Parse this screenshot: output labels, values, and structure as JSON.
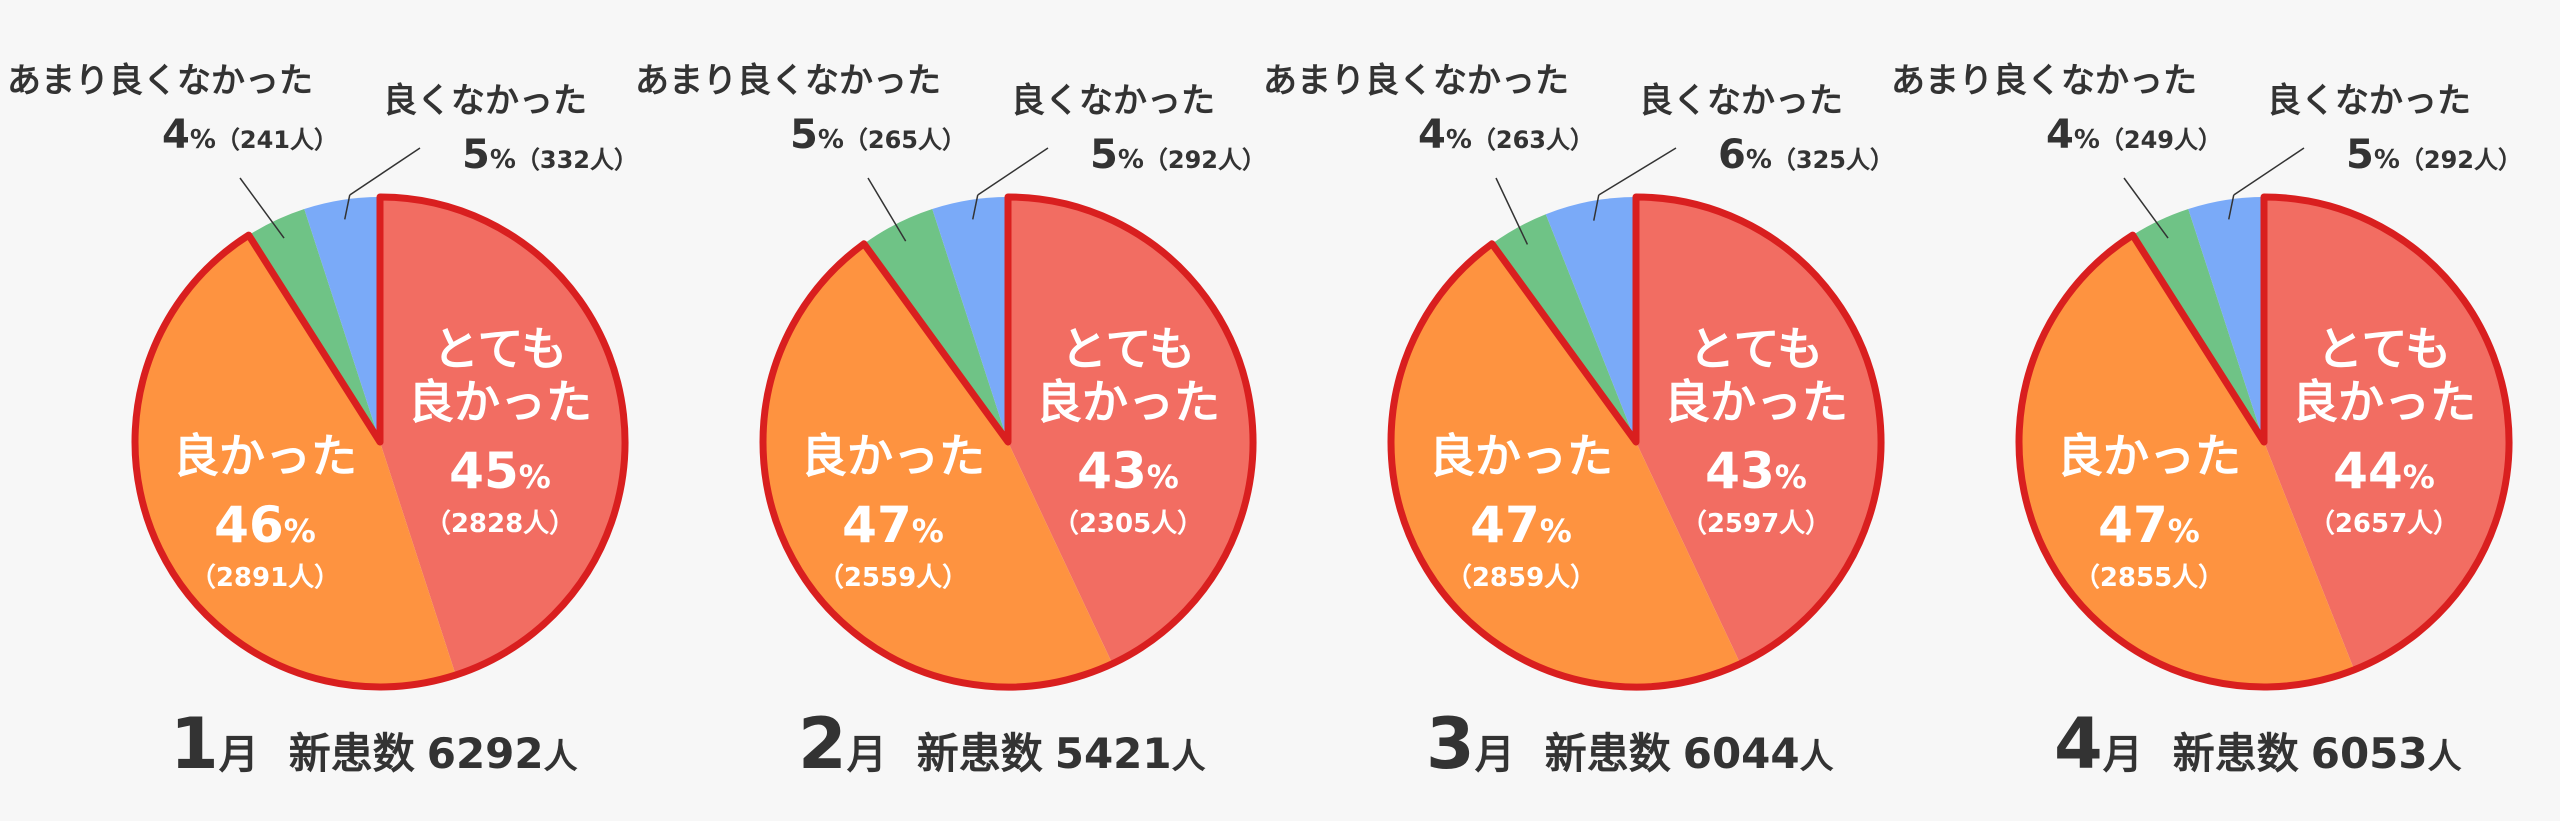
{
  "unit_percent": "%",
  "unit_person": "人",
  "colors": {
    "very_good": "#f26d62",
    "good": "#fe9340",
    "not_very_good": "#6fc386",
    "not_good": "#7aaaf8",
    "highlight_border": "#d91f1f",
    "text": "#333333"
  },
  "chart_data": [
    {
      "type": "pie",
      "month_num": "1",
      "month_suffix": "月",
      "patients_label": "新患数",
      "patients_value": "6292",
      "slices": [
        {
          "key": "very_good",
          "label_lines": [
            "とても",
            "良かった"
          ],
          "percent": 45,
          "count": "（2828人）"
        },
        {
          "key": "good",
          "label_lines": [
            "良かった"
          ],
          "percent": 46,
          "count": "（2891人）"
        },
        {
          "key": "not_very_good",
          "label_lines": [
            "あまり良くなかった"
          ],
          "percent": 4,
          "count": "（241人）"
        },
        {
          "key": "not_good",
          "label_lines": [
            "良くなかった"
          ],
          "percent": 5,
          "count": "（332人）"
        }
      ]
    },
    {
      "type": "pie",
      "month_num": "2",
      "month_suffix": "月",
      "patients_label": "新患数",
      "patients_value": "5421",
      "slices": [
        {
          "key": "very_good",
          "label_lines": [
            "とても",
            "良かった"
          ],
          "percent": 43,
          "count": "（2305人）"
        },
        {
          "key": "good",
          "label_lines": [
            "良かった"
          ],
          "percent": 47,
          "count": "（2559人）"
        },
        {
          "key": "not_very_good",
          "label_lines": [
            "あまり良くなかった"
          ],
          "percent": 5,
          "count": "（265人）"
        },
        {
          "key": "not_good",
          "label_lines": [
            "良くなかった"
          ],
          "percent": 5,
          "count": "（292人）"
        }
      ]
    },
    {
      "type": "pie",
      "month_num": "3",
      "month_suffix": "月",
      "patients_label": "新患数",
      "patients_value": "6044",
      "slices": [
        {
          "key": "very_good",
          "label_lines": [
            "とても",
            "良かった"
          ],
          "percent": 43,
          "count": "（2597人）"
        },
        {
          "key": "good",
          "label_lines": [
            "良かった"
          ],
          "percent": 47,
          "count": "（2859人）"
        },
        {
          "key": "not_very_good",
          "label_lines": [
            "あまり良くなかった"
          ],
          "percent": 4,
          "count": "（263人）"
        },
        {
          "key": "not_good",
          "label_lines": [
            "良くなかった"
          ],
          "percent": 6,
          "count": "（325人）"
        }
      ]
    },
    {
      "type": "pie",
      "month_num": "4",
      "month_suffix": "月",
      "patients_label": "新患数",
      "patients_value": "6053",
      "slices": [
        {
          "key": "very_good",
          "label_lines": [
            "とても",
            "良かった"
          ],
          "percent": 44,
          "count": "（2657人）"
        },
        {
          "key": "good",
          "label_lines": [
            "良かった"
          ],
          "percent": 47,
          "count": "（2855人）"
        },
        {
          "key": "not_very_good",
          "label_lines": [
            "あまり良くなかった"
          ],
          "percent": 4,
          "count": "（249人）"
        },
        {
          "key": "not_good",
          "label_lines": [
            "良くなかった"
          ],
          "percent": 5,
          "count": "（292人）"
        }
      ]
    }
  ]
}
